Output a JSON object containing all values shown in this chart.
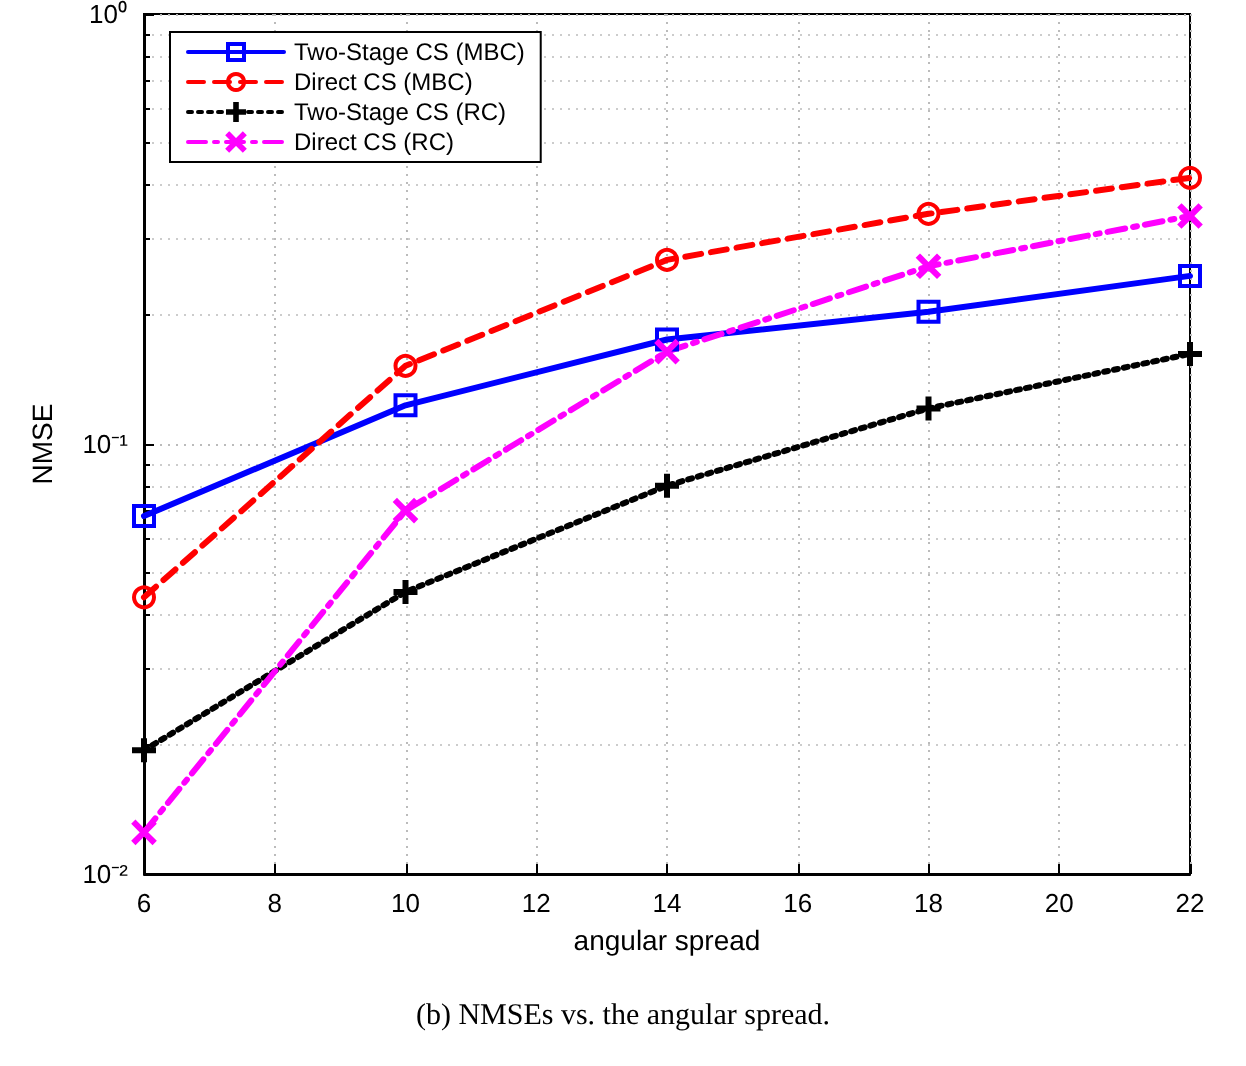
{
  "chart_data": {
    "type": "line",
    "xlabel": "angular spread",
    "ylabel": "NMSE",
    "x": [
      6,
      10,
      14,
      18,
      22
    ],
    "xlim": [
      6,
      22
    ],
    "xticks": [
      6,
      8,
      10,
      12,
      14,
      16,
      18,
      20,
      22
    ],
    "ylim": [
      0.01,
      1
    ],
    "yticks": [
      {
        "value": 0.01,
        "label": "10⁻²"
      },
      {
        "value": 0.1,
        "label": "10⁻¹"
      },
      {
        "value": 1,
        "label": "10⁰"
      }
    ],
    "log": "y",
    "grid": true,
    "legend": "top left",
    "annotations": [
      "(b) NMSEs vs. the angular spread."
    ],
    "series": [
      {
        "name": "Two-Stage CS (MBC)",
        "color": "#0000ff",
        "marker": "square",
        "line_style": "solid",
        "values": [
          0.068,
          0.123,
          0.175,
          0.203,
          0.246
        ]
      },
      {
        "name": "Direct CS (MBC)",
        "color": "#ff0000",
        "marker": "circle",
        "line_style": "dashed",
        "values": [
          0.044,
          0.152,
          0.268,
          0.343,
          0.416
        ]
      },
      {
        "name": "Two-Stage CS (RC)",
        "color": "#000000",
        "marker": "plus",
        "line_style": "dotted",
        "values": [
          0.0194,
          0.0453,
          0.08,
          0.121,
          0.162
        ]
      },
      {
        "name": "Direct CS (RC)",
        "color": "#ff00ff",
        "marker": "cross",
        "line_style": "dashdot",
        "values": [
          0.0125,
          0.07,
          0.164,
          0.259,
          0.339
        ]
      }
    ]
  }
}
